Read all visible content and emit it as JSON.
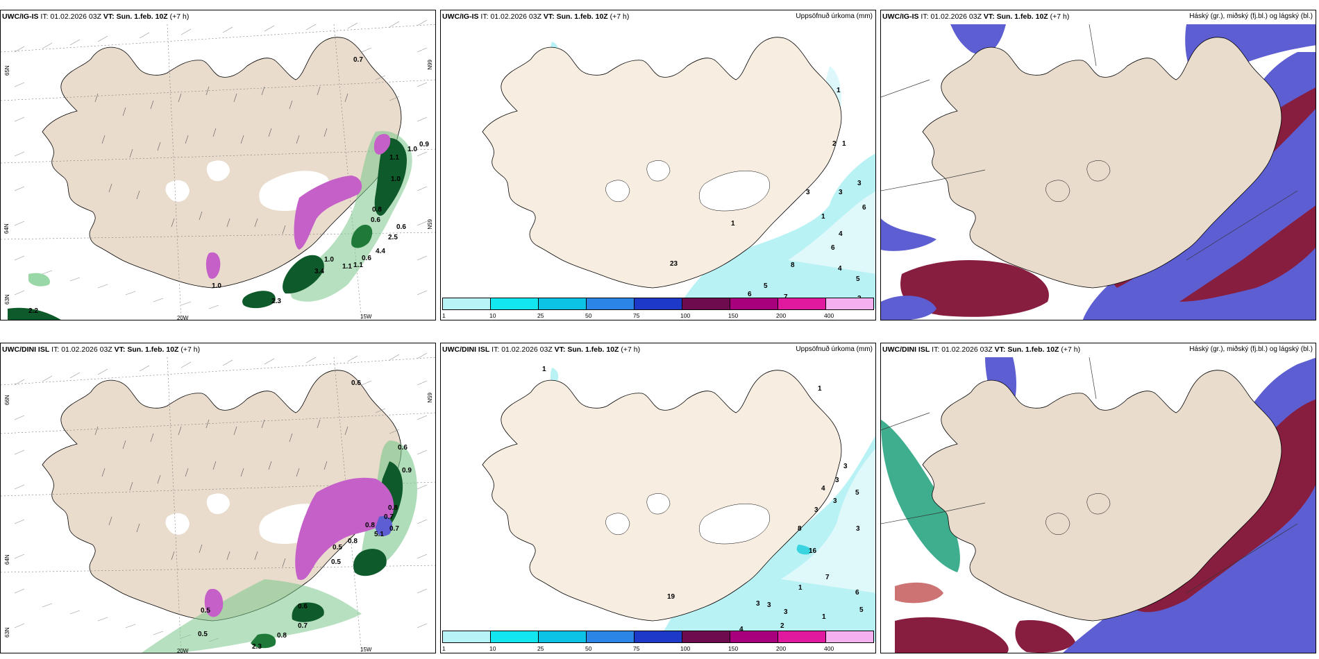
{
  "rows": [
    {
      "p1": {
        "model": "UWC/IG-IS",
        "it_label": "IT:",
        "it": "01.02.2026 03Z",
        "vt_label": "VT:",
        "vt": "Sun. 1.feb. 10Z",
        "lead": "(+7 h)",
        "labels": [
          "0.7",
          "1.0",
          "0.9",
          "1.1",
          "1.0",
          "0.8",
          "0.6",
          "0.6",
          "2.5",
          "4.4",
          "1.0",
          "0.6",
          "1.1",
          "1.1",
          "3.4",
          "2.3",
          "1.0",
          "2.2"
        ],
        "lon_labels": [
          "20W",
          "15W"
        ],
        "lat_labels": [
          "65N",
          "64N",
          "66N",
          "65N",
          "63N"
        ]
      },
      "p2": {
        "model": "UWC/IG-IS",
        "it_label": "IT:",
        "it": "01.02.2026 03Z",
        "vt_label": "VT:",
        "vt": "Sun. 1.feb. 10Z",
        "lead": "(+7 h)",
        "title": "Uppsöfnuð úrkoma (mm)",
        "labels": [
          "1",
          "1",
          "2",
          "3",
          "3",
          "3",
          "6",
          "1",
          "4",
          "6",
          "8",
          "4",
          "5",
          "7",
          "6",
          "5",
          "2",
          "1",
          "23"
        ]
      },
      "p3": {
        "model": "UWC/IG-IS",
        "it_label": "IT:",
        "it": "01.02.2026 03Z",
        "vt_label": "VT:",
        "vt": "Sun. 1.feb. 10Z",
        "lead": "(+7 h)",
        "title": "Háský (gr.), miðský (fj.bl.) og lágský (bl.)"
      }
    },
    {
      "p1": {
        "model": "UWC/DINI ISL",
        "it_label": "IT:",
        "it": "01.02.2026 03Z",
        "vt_label": "VT:",
        "vt": "Sun. 1.feb. 10Z",
        "lead": "(+7 h)",
        "labels": [
          "0.6",
          "0.6",
          "0.9",
          "0.8",
          "0.7",
          "0.8",
          "0.5",
          "5.1",
          "0.8",
          "0.7",
          "0.5",
          "0.6",
          "0.7",
          "0.8",
          "2.3",
          "0.5",
          "0.5"
        ],
        "lon_labels": [
          "20W",
          "15W"
        ],
        "lat_labels": [
          "66N",
          "64N",
          "63N",
          "65N"
        ]
      },
      "p2": {
        "model": "UWC/DINI ISL",
        "it_label": "IT:",
        "it": "01.02.2026 03Z",
        "vt_label": "VT:",
        "vt": "Sun. 1.feb. 10Z",
        "lead": "(+7 h)",
        "title": "Uppsöfnuð úrkoma (mm)",
        "labels": [
          "1",
          "1",
          "3",
          "3",
          "3",
          "5",
          "3",
          "8",
          "4",
          "3",
          "16",
          "1",
          "3",
          "3",
          "3",
          "7",
          "6",
          "5",
          "1",
          "2",
          "4",
          "19"
        ]
      },
      "p3": {
        "model": "UWC/DINI ISL",
        "it_label": "IT:",
        "it": "01.02.2026 03Z",
        "vt_label": "VT:",
        "vt": "Sun. 1.feb. 10Z",
        "lead": "(+7 h)",
        "title": "Háský (gr.), miðský (fj.bl.) og lágský (bl.)"
      }
    }
  ],
  "colorbar": {
    "ticks": [
      "1",
      "10",
      "25",
      "50",
      "75",
      "100",
      "150",
      "200",
      "400"
    ],
    "colors": [
      "#b8f3f7",
      "#12e6ef",
      "#0cc3e6",
      "#2a85e6",
      "#1d39c8",
      "#6d0b4e",
      "#a8007c",
      "#e0199f",
      "#f5b0ef"
    ]
  },
  "colors": {
    "land": "#f7ede1",
    "land_p1": "#e9dccd",
    "rain": "#b9f2f5",
    "green": "#0f5a2a",
    "pink": "#c560c9",
    "high_cloud": "#5d5ed2",
    "mid_cloud": "#871e3f"
  }
}
